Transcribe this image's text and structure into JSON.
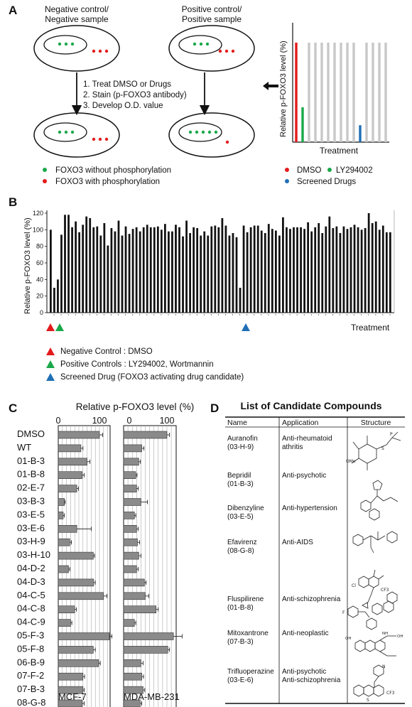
{
  "panel_labels": {
    "a": "A",
    "b": "B",
    "c": "C",
    "d": "D"
  },
  "panel_a": {
    "neg_title_1": "Negative control/",
    "neg_title_2": "Negative sample",
    "pos_title_1": "Positive control/",
    "pos_title_2": "Positive sample",
    "steps": [
      "1.  Treat DMSO or Drugs",
      "2.  Stain (p-FOXO3 antibody)",
      "3.  Develop O.D. value"
    ],
    "legend_green": "FOXO3 without phosphorylation",
    "legend_red": "FOXO3 with phosphorylation",
    "chart_ylabel": "Relative p-FOXO3 level (%)",
    "chart_xlabel": "Treatment",
    "chart_legend": [
      "DMSO",
      "LY294002",
      "Screened Drugs"
    ],
    "colors": {
      "red": "#e31a1c",
      "green": "#1aa84a",
      "blue": "#1f6fb5",
      "gray": "#c8c8c8"
    }
  },
  "panel_b": {
    "ylabel": "Relative p-FOXO3 level (%)",
    "xlabel": "Treatment",
    "legend": [
      "Negative Control : DMSO",
      "Positive Controls : LY294002, Wortmannin",
      "Screened Drug (FOXO3 activating drug candidate)"
    ]
  },
  "panel_c": {
    "title": "Relative p-FOXO3 level (%)",
    "tick_labels": [
      "0",
      "100"
    ],
    "cell_lines": [
      "MCF-7",
      "MDA-MB-231"
    ]
  },
  "panel_d": {
    "title": "List of Candidate Compounds",
    "headers": [
      "Name",
      "Application",
      "Structure"
    ],
    "rows": [
      {
        "name": "Auranofin",
        "code": "(03-H-9)",
        "app1": "Anti-rheumatoid",
        "app2": "athritis"
      },
      {
        "name": "Bepridil",
        "code": "(01-B-3)",
        "app1": "Anti-psychotic",
        "app2": ""
      },
      {
        "name": "Dibenzyline",
        "code": "(03-E-5)",
        "app1": "Anti-hypertension",
        "app2": ""
      },
      {
        "name": "Efavirenz",
        "code": "(08-G-8)",
        "app1": "Anti-AIDS",
        "app2": ""
      },
      {
        "name": "Fluspilirene",
        "code": "(01-B-8)",
        "app1": "Anti-schizophrenia",
        "app2": ""
      },
      {
        "name": "Mitoxantrone",
        "code": "(07-B-3)",
        "app1": "Anti-neoplastic",
        "app2": ""
      },
      {
        "name": "Trifluoperazine",
        "code": "(03-E-6)",
        "app1": "Anti-psychotic",
        "app2": "Anti-schizophrenia"
      }
    ],
    "structure_labels": {
      "auranofin_ome": "OMe",
      "auranofin_s": "S",
      "auranofin_p": "P",
      "efavirenz_cl": "Cl",
      "efavirenz_cf3": "CF3",
      "fluspilirene_f": "F",
      "mitoxantrone_oh": "OH",
      "mitoxantrone_nh": "NH",
      "trifluo_n": "N",
      "trifluo_cf3": "CF3",
      "trifluo_s": "S"
    }
  },
  "chart_data": [
    {
      "type": "bar",
      "title": "",
      "xlabel": "Treatment",
      "ylabel": "Relative p-FOXO3 level (%)",
      "ylim": [
        0,
        120
      ],
      "yticks": [
        0,
        20,
        40,
        60,
        80,
        100,
        120
      ],
      "grid": false,
      "values": [
        100,
        30,
        40,
        94,
        118,
        118,
        103,
        110,
        97,
        106,
        116,
        114,
        103,
        104,
        93,
        108,
        81,
        102,
        98,
        111,
        93,
        104,
        95,
        101,
        103,
        98,
        103,
        106,
        103,
        103,
        104,
        100,
        107,
        98,
        98,
        106,
        103,
        92,
        111,
        96,
        103,
        102,
        93,
        98,
        93,
        104,
        105,
        103,
        114,
        105,
        93,
        96,
        91,
        30,
        105,
        97,
        103,
        105,
        105,
        99,
        96,
        107,
        101,
        99,
        93,
        115,
        103,
        101,
        103,
        103,
        103,
        101,
        109,
        98,
        103,
        108,
        96,
        104,
        116,
        102,
        104,
        96,
        104,
        101,
        103,
        106,
        103,
        100,
        102,
        120,
        108,
        110,
        100,
        105,
        97,
        97
      ]
    },
    {
      "type": "bar",
      "title": "MCF-7",
      "xlabel": "Relative p-FOXO3 level (%)",
      "orientation": "horizontal",
      "xlim": [
        0,
        130
      ],
      "categories": [
        "DMSO",
        "WT",
        "01-B-3",
        "01-B-8",
        "02-E-7",
        "03-B-3",
        "03-E-5",
        "03-E-6",
        "03-H-9",
        "03-H-10",
        "04-D-2",
        "04-D-3",
        "04-C-5",
        "04-C-8",
        "04-C-9",
        "05-F-3",
        "05-F-8",
        "06-B-9",
        "07-F-2",
        "07-B-3",
        "08-G-8"
      ],
      "values": [
        100,
        55,
        70,
        58,
        45,
        15,
        12,
        45,
        28,
        85,
        25,
        86,
        110,
        40,
        30,
        125,
        85,
        98,
        60,
        60,
        58
      ]
    },
    {
      "type": "bar",
      "title": "MDA-MB-231",
      "xlabel": "Relative p-FOXO3 level (%)",
      "orientation": "horizontal",
      "xlim": [
        0,
        130
      ],
      "categories": [
        "DMSO",
        "WT",
        "01-B-3",
        "01-B-8",
        "02-E-7",
        "03-B-3",
        "03-E-5",
        "03-E-6",
        "03-H-9",
        "03-H-10",
        "04-D-2",
        "04-D-3",
        "04-C-5",
        "04-C-8",
        "04-C-9",
        "05-F-3",
        "05-F-8",
        "06-B-9",
        "07-F-2",
        "07-B-3",
        "08-G-8"
      ],
      "values": [
        100,
        42,
        35,
        28,
        30,
        40,
        25,
        30,
        32,
        35,
        30,
        48,
        50,
        75,
        25,
        115,
        102,
        40,
        42,
        45,
        38
      ]
    }
  ]
}
